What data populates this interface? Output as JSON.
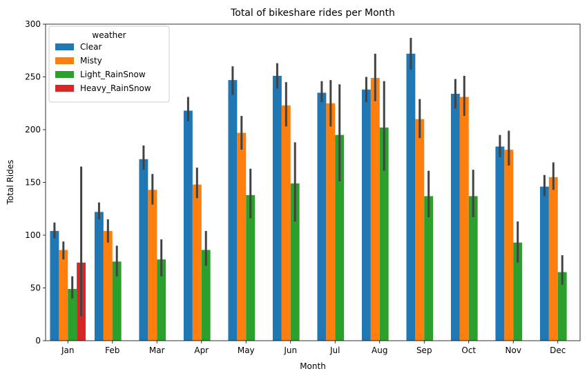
{
  "chart_data": {
    "type": "bar",
    "title": "Total of bikeshare rides per Month",
    "xlabel": "Month",
    "ylabel": "Total Rides",
    "ylim": [
      0,
      300
    ],
    "yticks": [
      0,
      50,
      100,
      150,
      200,
      250,
      300
    ],
    "categories": [
      "Jan",
      "Feb",
      "Mar",
      "Apr",
      "May",
      "Jun",
      "Jul",
      "Aug",
      "Sep",
      "Oct",
      "Nov",
      "Dec"
    ],
    "legend": {
      "title": "weather",
      "placement": "top-left"
    },
    "grid": false,
    "series": [
      {
        "name": "Clear",
        "color": "#1f77b4",
        "values": [
          104,
          122,
          172,
          218,
          247,
          251,
          235,
          238,
          272,
          234,
          184,
          146
        ],
        "ci": [
          [
            97,
            112
          ],
          [
            115,
            131
          ],
          [
            162,
            185
          ],
          [
            208,
            231
          ],
          [
            233,
            260
          ],
          [
            239,
            263
          ],
          [
            226,
            246
          ],
          [
            226,
            250
          ],
          [
            257,
            287
          ],
          [
            220,
            248
          ],
          [
            174,
            195
          ],
          [
            137,
            157
          ]
        ]
      },
      {
        "name": "Misty",
        "color": "#ff7f0e",
        "values": [
          86,
          104,
          143,
          148,
          197,
          223,
          225,
          249,
          210,
          231,
          181,
          155
        ],
        "ci": [
          [
            77,
            94
          ],
          [
            93,
            115
          ],
          [
            129,
            158
          ],
          [
            135,
            164
          ],
          [
            181,
            213
          ],
          [
            203,
            245
          ],
          [
            203,
            247
          ],
          [
            227,
            272
          ],
          [
            192,
            229
          ],
          [
            213,
            251
          ],
          [
            166,
            199
          ],
          [
            143,
            169
          ]
        ]
      },
      {
        "name": "Light_RainSnow",
        "color": "#2ca02c",
        "values": [
          49,
          75,
          77,
          86,
          138,
          149,
          195,
          202,
          137,
          137,
          93,
          65
        ],
        "ci": [
          [
            40,
            61
          ],
          [
            61,
            90
          ],
          [
            61,
            96
          ],
          [
            71,
            104
          ],
          [
            116,
            163
          ],
          [
            113,
            188
          ],
          [
            151,
            243
          ],
          [
            161,
            246
          ],
          [
            117,
            161
          ],
          [
            117,
            162
          ],
          [
            74,
            113
          ],
          [
            53,
            81
          ]
        ]
      },
      {
        "name": "Heavy_RainSnow",
        "color": "#d62728",
        "values": [
          74,
          null,
          null,
          null,
          null,
          null,
          null,
          null,
          null,
          null,
          null,
          null
        ],
        "ci": [
          [
            23,
            165
          ],
          null,
          null,
          null,
          null,
          null,
          null,
          null,
          null,
          null,
          null,
          null
        ]
      }
    ]
  }
}
